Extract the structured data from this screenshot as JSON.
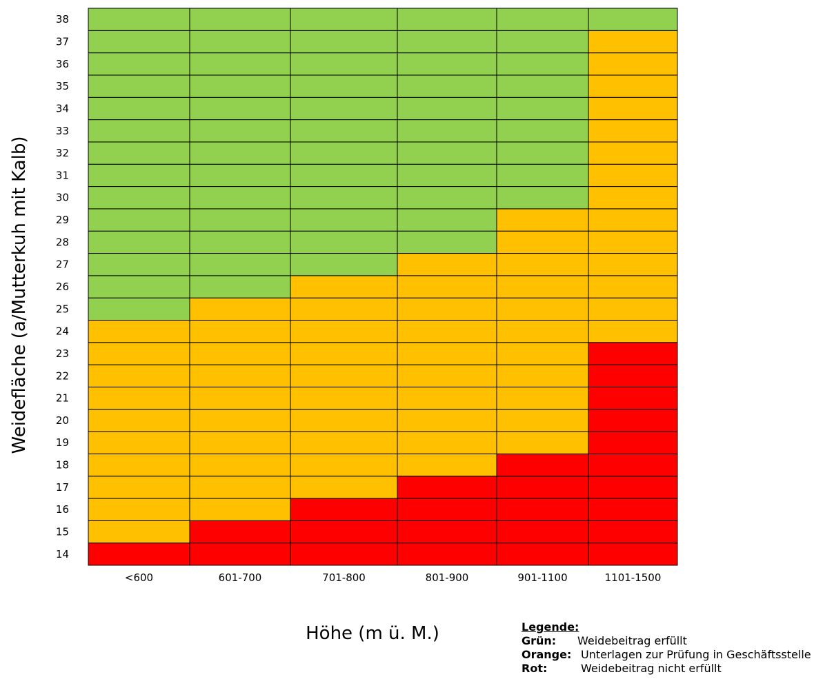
{
  "chart_data": {
    "type": "heatmap",
    "xlabel": "Höhe (m ü. M.)",
    "ylabel": "Weidefläche (a/Mutterkuh mit Kalb)",
    "categories": [
      "<600",
      "601-700",
      "701-800",
      "801-900",
      "901-1100",
      "1101-1500"
    ],
    "y": [
      14,
      15,
      16,
      17,
      18,
      19,
      20,
      21,
      22,
      23,
      24,
      25,
      26,
      27,
      28,
      29,
      30,
      31,
      32,
      33,
      34,
      35,
      36,
      37,
      38
    ],
    "color_scale": {
      "gruen": "#92D050",
      "orange": "#FFC000",
      "rot": "#FF0000"
    },
    "columns": [
      {
        "category": "<600",
        "rot_max": 14,
        "orange_max": 24
      },
      {
        "category": "601-700",
        "rot_max": 15,
        "orange_max": 25
      },
      {
        "category": "701-800",
        "rot_max": 16,
        "orange_max": 26
      },
      {
        "category": "801-900",
        "rot_max": 17,
        "orange_max": 27
      },
      {
        "category": "901-1100",
        "rot_max": 18,
        "orange_max": 29
      },
      {
        "category": "1101-1500",
        "rot_max": 23,
        "orange_max": 37
      }
    ],
    "grid": true,
    "legend_position": "bottom-right"
  },
  "legend": {
    "title": "Legende:",
    "items": [
      {
        "key": "Grün:",
        "text": "Weidebeitrag erfüllt",
        "color": "#92D050"
      },
      {
        "key": "Orange:",
        "text": "Unterlagen zur Prüfung in Geschäftsstelle",
        "color": "#FFC000"
      },
      {
        "key": "Rot:",
        "text": "Weidebeitrag nicht erfüllt",
        "color": "#FF0000"
      }
    ]
  }
}
